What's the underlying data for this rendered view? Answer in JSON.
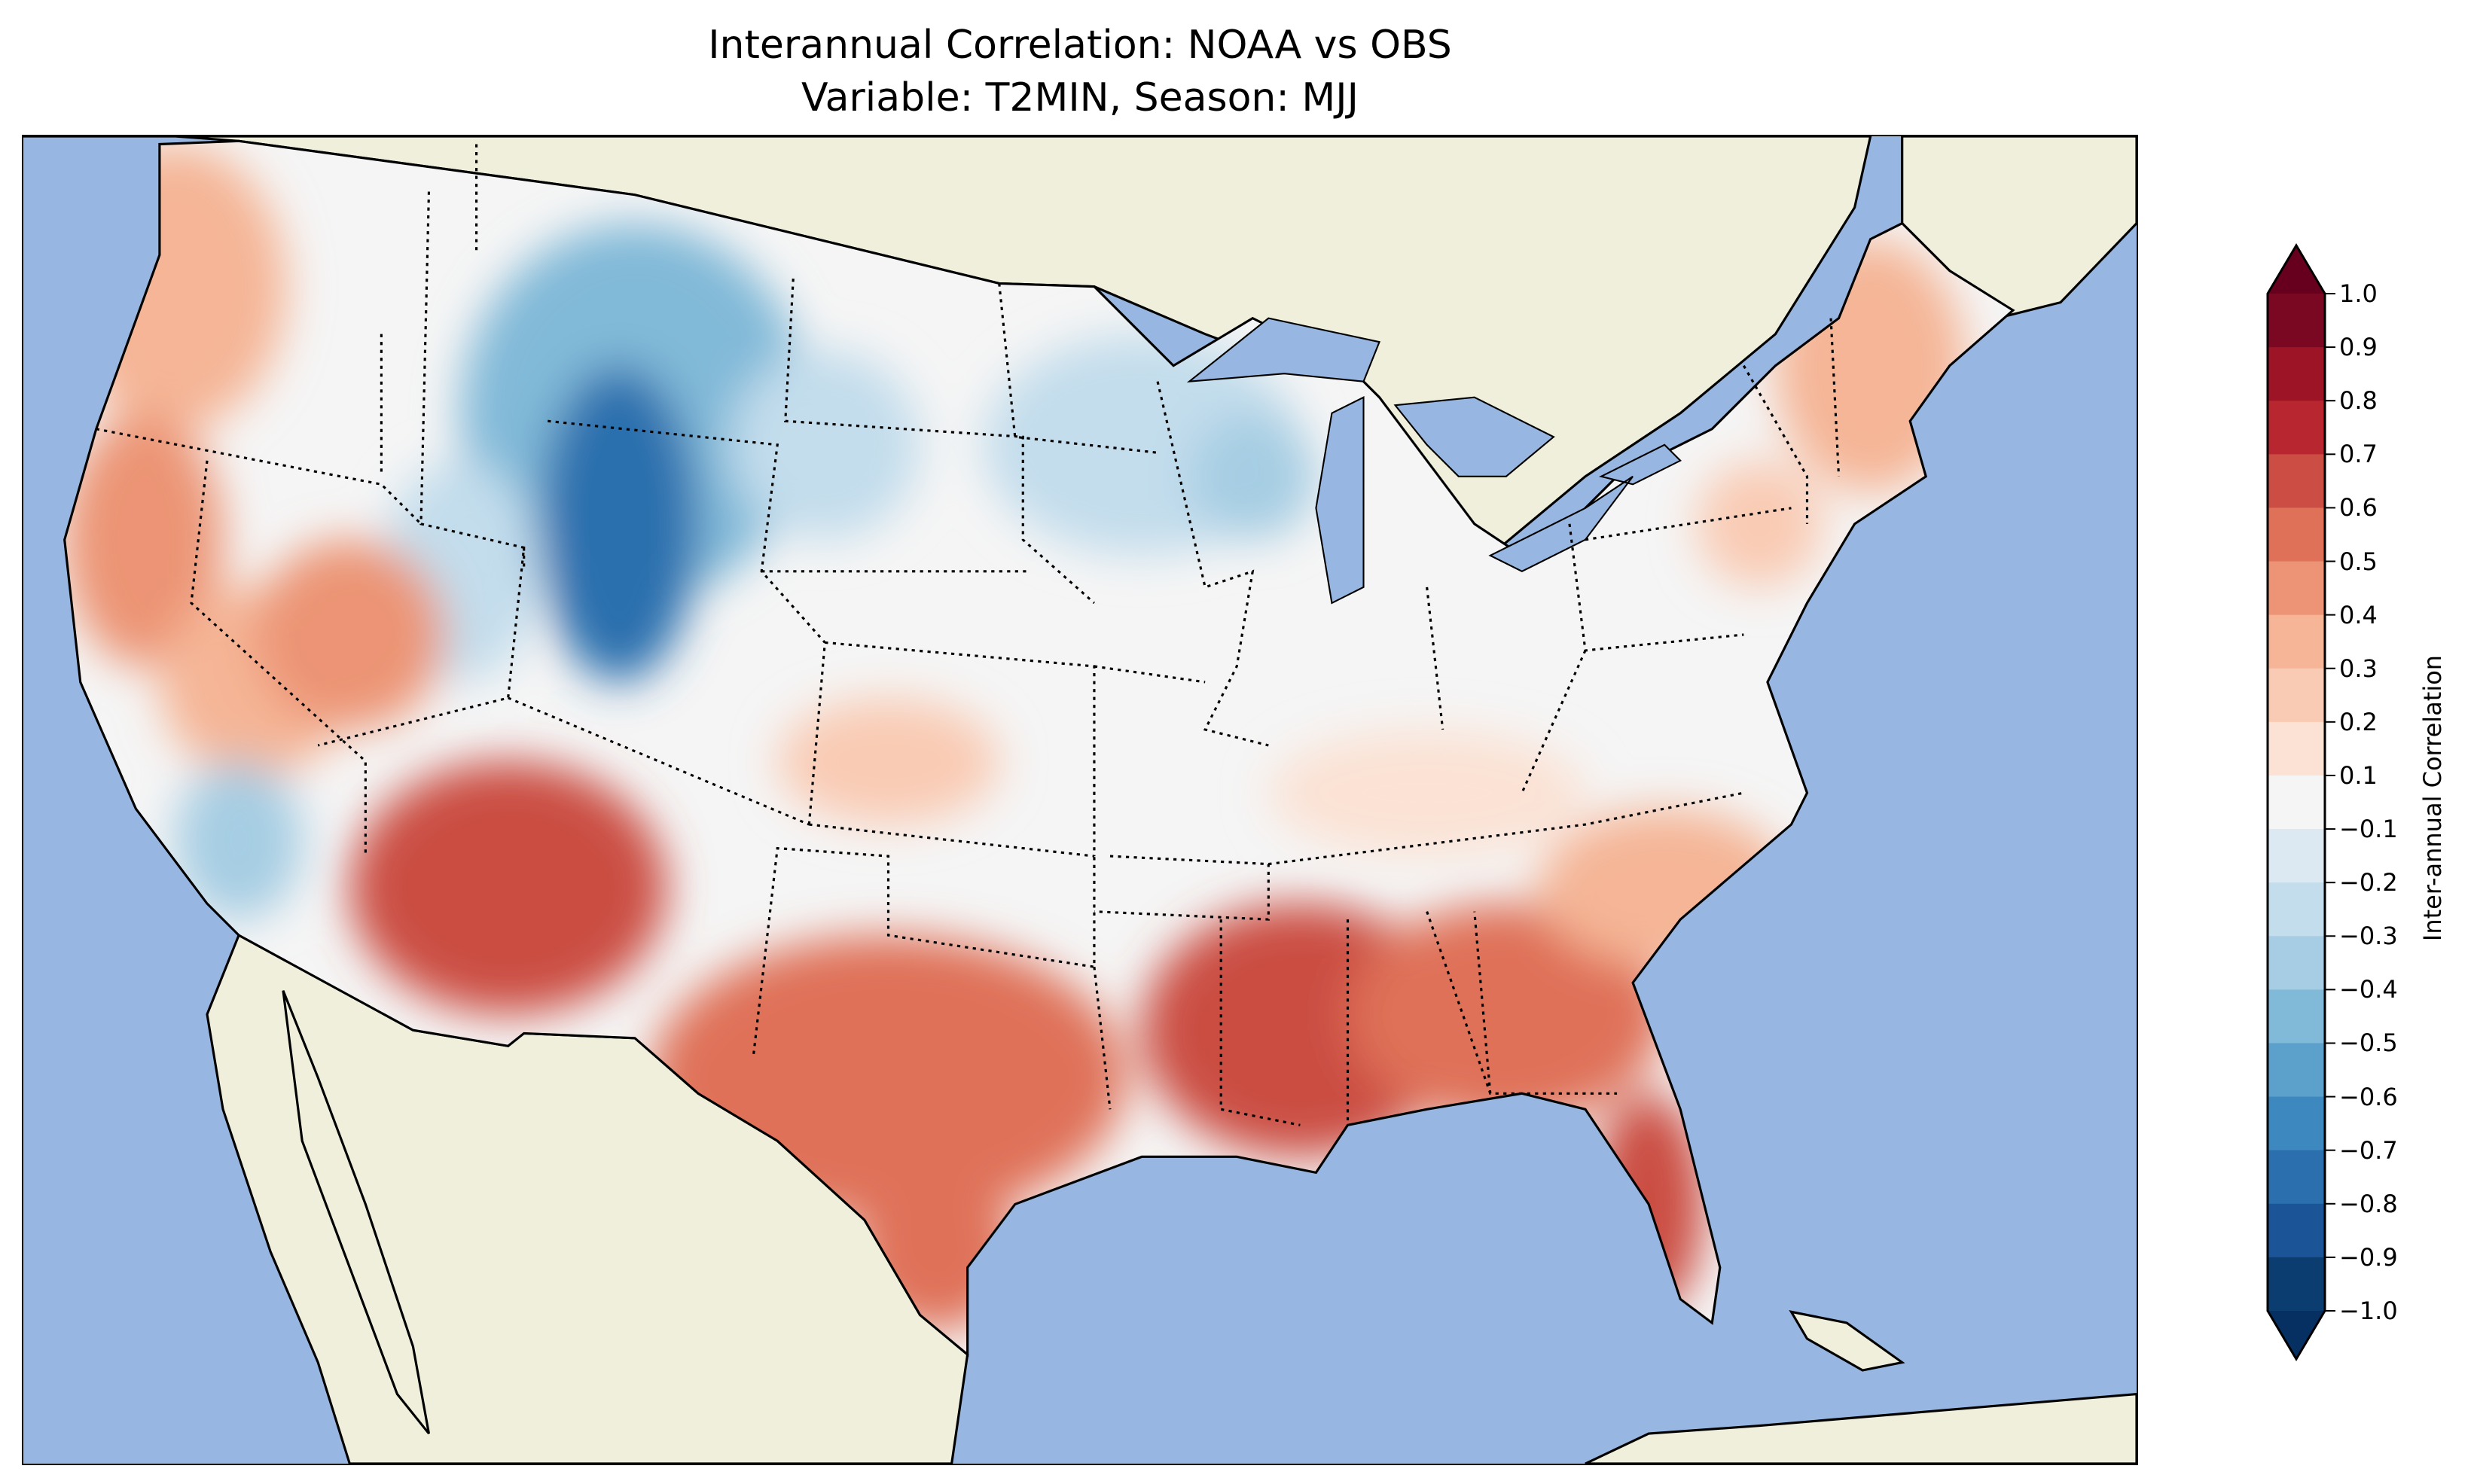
{
  "title": {
    "line1": "Interannual Correlation: NOAA vs OBS",
    "line2": "Variable: T2MIN, Season: MJJ"
  },
  "map": {
    "ocean_color": "#97b6e1",
    "land_color": "#efefdb",
    "region": "Contiguous United States"
  },
  "colorbar": {
    "label": "Inter-annual Correlation",
    "ticks": [
      "1.0",
      "0.9",
      "0.8",
      "0.7",
      "0.6",
      "0.5",
      "0.4",
      "0.3",
      "0.2",
      "0.1",
      "−0.1",
      "−0.2",
      "−0.3",
      "−0.4",
      "−0.5",
      "−0.6",
      "−0.7",
      "−0.8",
      "−0.9",
      "−1.0"
    ],
    "colors_top_to_bottom": [
      "#7b0823",
      "#9e1427",
      "#b8272f",
      "#cb4d43",
      "#df7158",
      "#ec9475",
      "#f5b596",
      "#f9cbb4",
      "#fbe2d4",
      "#f5f5f5",
      "#dde9f2",
      "#c3ddec",
      "#a6cde3",
      "#81b9d8",
      "#5ba1cb",
      "#3c88bf",
      "#2b6fae",
      "#1b5597",
      "#0c3d71"
    ],
    "extend_max_color": "#67001f",
    "extend_min_color": "#053061"
  }
}
